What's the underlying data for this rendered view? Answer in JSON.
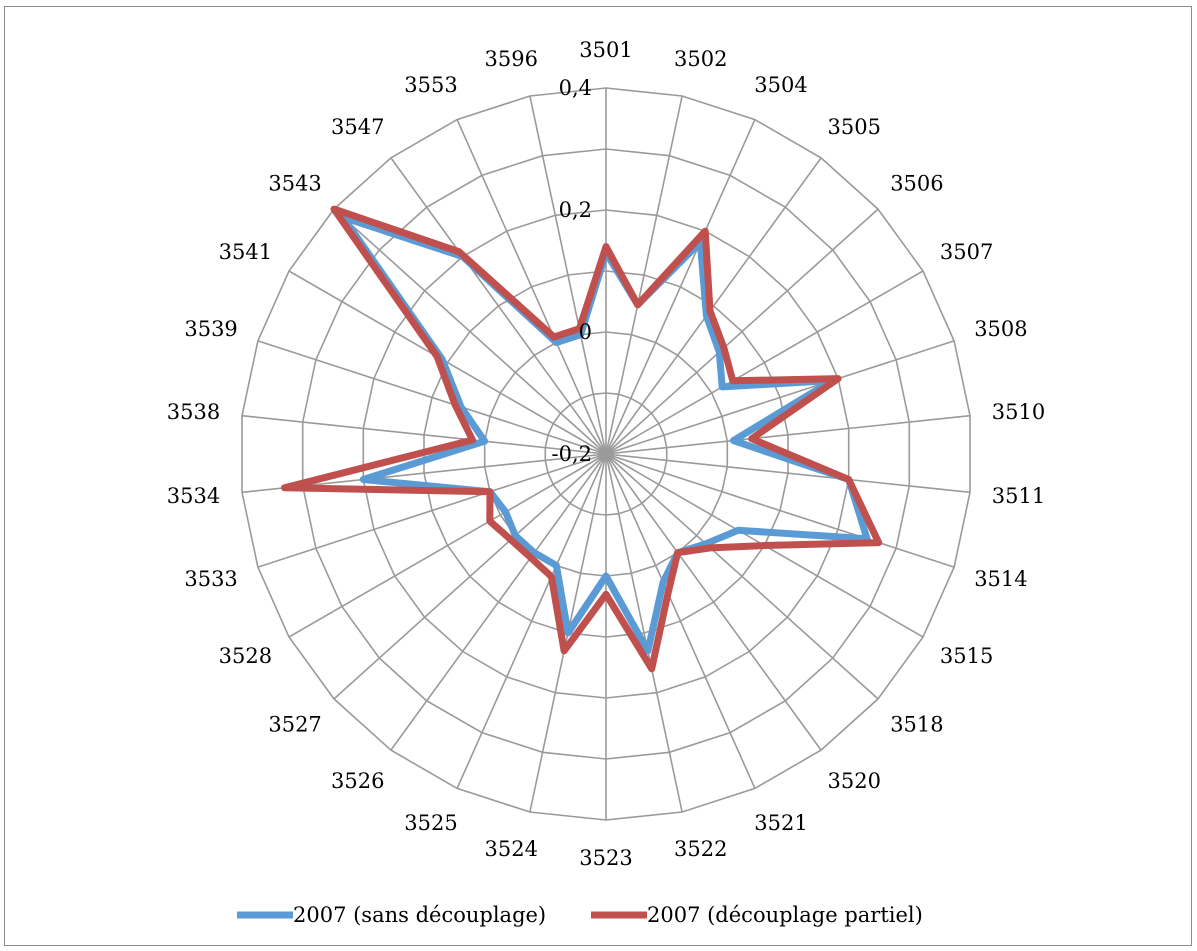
{
  "chart_data": {
    "type": "radar",
    "title": "",
    "categories": [
      "3501",
      "3502",
      "3504",
      "3505",
      "3506",
      "3507",
      "3508",
      "3510",
      "3511",
      "3514",
      "3515",
      "3518",
      "3520",
      "3521",
      "3522",
      "3523",
      "3524",
      "3525",
      "3526",
      "3527",
      "3528",
      "3533",
      "3534",
      "3538",
      "3539",
      "3541",
      "3543",
      "3547",
      "3553",
      "3596"
    ],
    "radial_axis": {
      "min": -0.2,
      "max": 0.4,
      "ticks": [
        -0.2,
        0,
        0.2,
        0.4
      ],
      "tick_labels": [
        "-0,2",
        "0",
        "0,2",
        "0,4"
      ]
    },
    "grid": true,
    "legend_position": "bottom",
    "series": [
      {
        "name": "2007 (sans découplage)",
        "color": "#5b9bd5",
        "values": [
          0.13,
          0.05,
          0.18,
          0.08,
          0.05,
          0.02,
          0.19,
          0.01,
          0.2,
          0.25,
          0.05,
          0.02,
          0.0,
          0.03,
          0.13,
          0.0,
          0.1,
          0.0,
          0.0,
          0.0,
          -0.01,
          0.0,
          0.2,
          0.0,
          0.05,
          0.11,
          0.38,
          0.2,
          0.0,
          0.0
        ]
      },
      {
        "name": "2007 (découplage partiel)",
        "color": "#c0504d",
        "values": [
          0.14,
          0.05,
          0.2,
          0.09,
          0.06,
          0.04,
          0.2,
          0.04,
          0.2,
          0.27,
          0.1,
          0.03,
          0.0,
          0.05,
          0.16,
          0.03,
          0.13,
          0.02,
          0.01,
          0.01,
          0.02,
          0.0,
          0.33,
          0.02,
          0.06,
          0.12,
          0.4,
          0.21,
          0.01,
          0.01
        ]
      }
    ]
  }
}
